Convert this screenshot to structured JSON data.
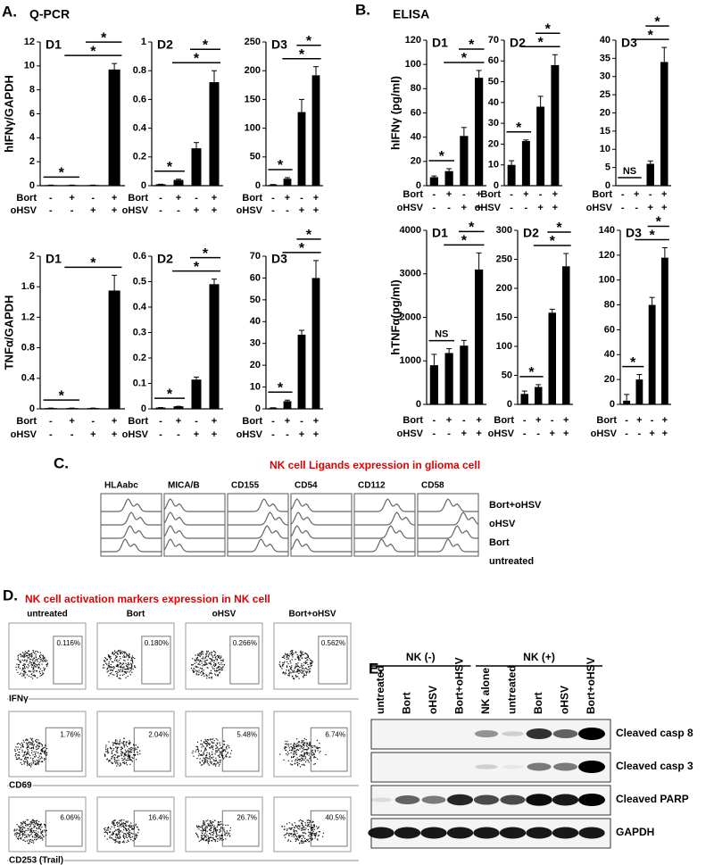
{
  "header": {
    "a_label": "A.",
    "a_title": "Q-PCR",
    "b_label": "B.",
    "b_title": "ELISA"
  },
  "chart_data": [
    {
      "type": "bar",
      "title": "D1",
      "ylabel": "hIFNγ/GAPDH",
      "values": [
        0.05,
        0.05,
        0.05,
        9.7
      ],
      "errors": [
        0,
        0,
        0,
        0.5
      ],
      "ylim": [
        0,
        12
      ],
      "yticks": [
        0,
        2,
        4,
        6,
        8,
        10,
        12
      ],
      "color": "#000000",
      "condition_rows": [
        {
          "label": "Bort",
          "signs": [
            "-",
            "+",
            "-",
            "+"
          ]
        },
        {
          "label": "oHSV",
          "signs": [
            "-",
            "-",
            "+",
            "+"
          ]
        }
      ],
      "annotations": [
        {
          "text": "*",
          "bars": [
            0,
            1
          ]
        },
        {
          "text": "*",
          "bars": [
            1,
            3
          ]
        },
        {
          "text": "*",
          "bars": [
            2,
            3
          ]
        }
      ]
    },
    {
      "type": "bar",
      "title": "D2",
      "values": [
        0.01,
        0.04,
        0.26,
        0.72
      ],
      "errors": [
        0,
        0.005,
        0.04,
        0.08
      ],
      "ylim": [
        0,
        1
      ],
      "yticks": [
        0,
        0.2,
        0.4,
        0.6,
        0.8,
        1
      ],
      "color": "#000000",
      "condition_rows": [
        {
          "label": "Bort",
          "signs": [
            "-",
            "+",
            "-",
            "+"
          ]
        },
        {
          "label": "oHSV",
          "signs": [
            "-",
            "-",
            "+",
            "+"
          ]
        }
      ],
      "annotations": [
        {
          "text": "*",
          "bars": [
            0,
            1
          ]
        },
        {
          "text": "*",
          "bars": [
            1,
            3
          ]
        },
        {
          "text": "*",
          "bars": [
            2,
            3
          ]
        }
      ]
    },
    {
      "type": "bar",
      "title": "D3",
      "values": [
        2,
        12,
        128,
        192
      ],
      "errors": [
        0,
        2,
        22,
        15
      ],
      "ylim": [
        0,
        250
      ],
      "yticks": [
        0,
        50,
        100,
        150,
        200,
        250
      ],
      "color": "#000000",
      "condition_rows": [
        {
          "label": "Bort",
          "signs": [
            "-",
            "+",
            "-",
            "+"
          ]
        },
        {
          "label": "oHSV",
          "signs": [
            "-",
            "-",
            "+",
            "+"
          ]
        }
      ],
      "annotations": [
        {
          "text": "*",
          "bars": [
            0,
            1
          ]
        },
        {
          "text": "*",
          "bars": [
            1,
            3
          ]
        },
        {
          "text": "*",
          "bars": [
            2,
            3
          ]
        }
      ]
    },
    {
      "type": "bar",
      "title": "D1",
      "ylabel": "TNFα/GAPDH",
      "values": [
        0.01,
        0.01,
        0.01,
        1.55
      ],
      "errors": [
        0,
        0,
        0,
        0.2
      ],
      "ylim": [
        0,
        2
      ],
      "yticks": [
        0,
        0.4,
        0.8,
        1.2,
        1.6,
        2
      ],
      "color": "#000000",
      "condition_rows": [
        {
          "label": "Bort",
          "signs": [
            "-",
            "+",
            "-",
            "+"
          ]
        },
        {
          "label": "oHSV",
          "signs": [
            "-",
            "-",
            "+",
            "+"
          ]
        }
      ],
      "annotations": [
        {
          "text": "*",
          "bars": [
            0,
            1
          ]
        },
        {
          "text": "*",
          "bars": [
            1,
            3
          ]
        }
      ]
    },
    {
      "type": "bar",
      "title": "D2",
      "values": [
        0.005,
        0.01,
        0.115,
        0.49
      ],
      "errors": [
        0,
        0,
        0.01,
        0.02
      ],
      "ylim": [
        0,
        0.6
      ],
      "yticks": [
        0,
        0.1,
        0.2,
        0.3,
        0.4,
        0.5,
        0.6
      ],
      "color": "#000000",
      "condition_rows": [
        {
          "label": "Bort",
          "signs": [
            "-",
            "+",
            "-",
            "+"
          ]
        },
        {
          "label": "oHSV",
          "signs": [
            "-",
            "-",
            "+",
            "+"
          ]
        }
      ],
      "annotations": [
        {
          "text": "*",
          "bars": [
            0,
            1
          ]
        },
        {
          "text": "*",
          "bars": [
            1,
            3
          ]
        },
        {
          "text": "*",
          "bars": [
            2,
            3
          ]
        }
      ]
    },
    {
      "type": "bar",
      "title": "D3",
      "values": [
        0.5,
        3.5,
        34,
        60
      ],
      "errors": [
        0,
        0.5,
        2,
        8
      ],
      "ylim": [
        0,
        70
      ],
      "yticks": [
        0,
        10,
        20,
        30,
        40,
        50,
        60,
        70
      ],
      "color": "#000000",
      "condition_rows": [
        {
          "label": "Bort",
          "signs": [
            "-",
            "+",
            "-",
            "+"
          ]
        },
        {
          "label": "oHSV",
          "signs": [
            "-",
            "-",
            "+",
            "+"
          ]
        }
      ],
      "annotations": [
        {
          "text": "*",
          "bars": [
            0,
            1
          ]
        },
        {
          "text": "*",
          "bars": [
            1,
            3
          ]
        },
        {
          "text": "*",
          "bars": [
            2,
            3
          ]
        }
      ]
    },
    {
      "type": "bar",
      "title": "D1",
      "ylabel": "hIFNγ (pg/ml)",
      "values": [
        7,
        12,
        41,
        89
      ],
      "errors": [
        1,
        2,
        7,
        6
      ],
      "ylim": [
        0,
        120
      ],
      "yticks": [
        0,
        20,
        40,
        60,
        80,
        100,
        120
      ],
      "color": "#000000",
      "condition_rows": [
        {
          "label": "Bort",
          "signs": [
            "-",
            "+",
            "-",
            "+"
          ]
        },
        {
          "label": "oHSV",
          "signs": [
            "-",
            "-",
            "+",
            "+"
          ]
        }
      ],
      "annotations": [
        {
          "text": "*",
          "bars": [
            0,
            1
          ]
        },
        {
          "text": "*",
          "bars": [
            1,
            3
          ]
        },
        {
          "text": "*",
          "bars": [
            2,
            3
          ]
        }
      ]
    },
    {
      "type": "bar",
      "title": "D2",
      "values": [
        10,
        21.5,
        38,
        58
      ],
      "errors": [
        2,
        0.5,
        5,
        5
      ],
      "ylim": [
        0,
        70
      ],
      "yticks": [
        0,
        10,
        20,
        30,
        40,
        50,
        60,
        70
      ],
      "color": "#000000",
      "condition_rows": [
        {
          "label": "Bort",
          "signs": [
            "-",
            "+",
            "-",
            "+"
          ]
        },
        {
          "label": "oHSV",
          "signs": [
            "-",
            "-",
            "+",
            "+"
          ]
        }
      ],
      "annotations": [
        {
          "text": "*",
          "bars": [
            0,
            1
          ]
        },
        {
          "text": "*",
          "bars": [
            1,
            3
          ]
        },
        {
          "text": "*",
          "bars": [
            2,
            3
          ]
        }
      ]
    },
    {
      "type": "bar",
      "title": "D3",
      "values": [
        0,
        0,
        6,
        34
      ],
      "errors": [
        0,
        0,
        0.8,
        4
      ],
      "ylim": [
        0,
        40
      ],
      "yticks": [
        0,
        5,
        10,
        15,
        20,
        25,
        30,
        35,
        40
      ],
      "color": "#000000",
      "condition_rows": [
        {
          "label": "Bort",
          "signs": [
            "-",
            "+",
            "-",
            "+"
          ]
        },
        {
          "label": "oHSV",
          "signs": [
            "-",
            "-",
            "+",
            "+"
          ]
        }
      ],
      "annotations": [
        {
          "text": "NS",
          "bars": [
            0,
            1
          ]
        },
        {
          "text": "*",
          "bars": [
            1,
            3
          ]
        },
        {
          "text": "*",
          "bars": [
            2,
            3
          ]
        }
      ]
    },
    {
      "type": "bar",
      "title": "D1",
      "ylabel": "hTNFα(pg/ml)",
      "values": [
        900,
        1180,
        1350,
        3100
      ],
      "errors": [
        250,
        100,
        120,
        380
      ],
      "ylim": [
        0,
        4000
      ],
      "yticks": [
        0,
        1000,
        2000,
        3000,
        4000
      ],
      "color": "#000000",
      "condition_rows": [
        {
          "label": "Bort",
          "signs": [
            "-",
            "+",
            "-",
            "+"
          ]
        },
        {
          "label": "oHSV",
          "signs": [
            "-",
            "-",
            "+",
            "+"
          ]
        }
      ],
      "annotations": [
        {
          "text": "NS",
          "bars": [
            0,
            1
          ]
        },
        {
          "text": "*",
          "bars": [
            1,
            3
          ]
        },
        {
          "text": "*",
          "bars": [
            2,
            3
          ]
        }
      ]
    },
    {
      "type": "bar",
      "title": "D2",
      "values": [
        18,
        30,
        158,
        238
      ],
      "errors": [
        5,
        4,
        6,
        22
      ],
      "ylim": [
        0,
        300
      ],
      "yticks": [
        0,
        50,
        100,
        150,
        200,
        250,
        300
      ],
      "color": "#000000",
      "condition_rows": [
        {
          "label": "Bort",
          "signs": [
            "-",
            "+",
            "-",
            "+"
          ]
        },
        {
          "label": "oHSV",
          "signs": [
            "-",
            "-",
            "+",
            "+"
          ]
        }
      ],
      "annotations": [
        {
          "text": "*",
          "bars": [
            0,
            1
          ]
        },
        {
          "text": "*",
          "bars": [
            1,
            3
          ]
        },
        {
          "text": "*",
          "bars": [
            2,
            3
          ]
        }
      ]
    },
    {
      "type": "bar",
      "title": "D3",
      "values": [
        3,
        20,
        80,
        118
      ],
      "errors": [
        5,
        4,
        6,
        8
      ],
      "ylim": [
        0,
        140
      ],
      "yticks": [
        0,
        20,
        40,
        60,
        80,
        100,
        120,
        140
      ],
      "color": "#000000",
      "condition_rows": [
        {
          "label": "Bort",
          "signs": [
            "-",
            "+",
            "-",
            "+"
          ]
        },
        {
          "label": "oHSV",
          "signs": [
            "-",
            "-",
            "+",
            "+"
          ]
        }
      ],
      "annotations": [
        {
          "text": "*",
          "bars": [
            0,
            1
          ]
        },
        {
          "text": "*",
          "bars": [
            1,
            3
          ]
        },
        {
          "text": "*",
          "bars": [
            2,
            3
          ]
        }
      ]
    }
  ],
  "panel_c": {
    "label": "C.",
    "title": "NK cell Ligands expression in glioma cell",
    "columns": [
      "HLAabc",
      "MICA/B",
      "CD155",
      "CD54",
      "CD112",
      "CD58"
    ],
    "rows": [
      "Bort+oHSV",
      "oHSV",
      "Bort",
      "untreated"
    ]
  },
  "panel_d": {
    "label": "D.",
    "title": "NK cell activation markers expression in NK cell",
    "columns": [
      "untreated",
      "Bort",
      "oHSV",
      "Bort+oHSV"
    ],
    "rows": [
      "IFNγ",
      "CD69",
      "CD253 (Trail)"
    ],
    "gates": [
      [
        "0.116%",
        "0.180%",
        "0.266%",
        "0.562%"
      ],
      [
        "1.76%",
        "2.04%",
        "5.48%",
        "6.74%"
      ],
      [
        "6.06%",
        "16.4%",
        "26.7%",
        "40.5%"
      ]
    ]
  },
  "panel_e": {
    "label": "E.",
    "groups": [
      "NK (-)",
      "NK (+)"
    ],
    "lanes": [
      "untreated",
      "Bort",
      "oHSV",
      "Bort+oHSV",
      "NK alone",
      "untreated",
      "Bort",
      "oHSV",
      "Bort+oHSV"
    ],
    "bands": [
      "Cleaved casp 8",
      "Cleaved casp 3",
      "Cleaved PARP",
      "GAPDH"
    ]
  }
}
